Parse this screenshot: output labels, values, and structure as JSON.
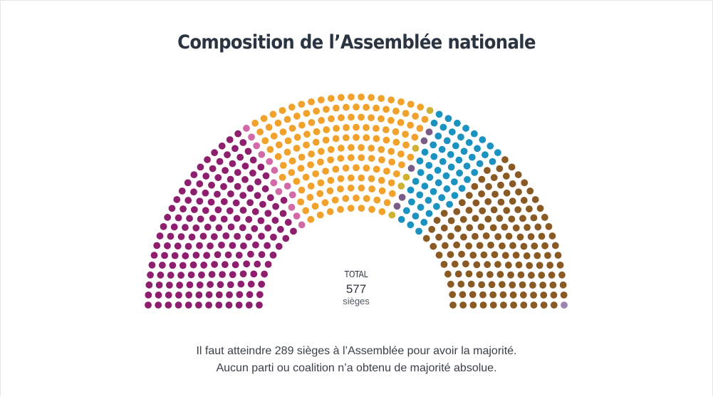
{
  "chart_data": {
    "type": "parliament",
    "title": "Composition de l’Assemblée nationale",
    "total": {
      "label": "TOTAL",
      "value": "577",
      "unit": "sièges"
    },
    "rows": 12,
    "parties": [
      {
        "color": "#8e1f6e",
        "seats": 181
      },
      {
        "color": "#d36aa8",
        "seats": 13
      },
      {
        "color": "#f1a22c",
        "seats": 158
      },
      {
        "color": "#cfb133",
        "seats": 5
      },
      {
        "color": "#7a5c88",
        "seats": 5
      },
      {
        "color": "#1b92c0",
        "seats": 63
      },
      {
        "color": "#8a5a25",
        "seats": 151
      },
      {
        "color": "#9b85b0",
        "seats": 1
      }
    ]
  },
  "footnote": {
    "line1": "Il faut atteindre 289 sièges à l’Assemblée pour avoir la majorité.",
    "line2": "Aucun parti ou coalition n’a obtenu de majorité absolue."
  }
}
